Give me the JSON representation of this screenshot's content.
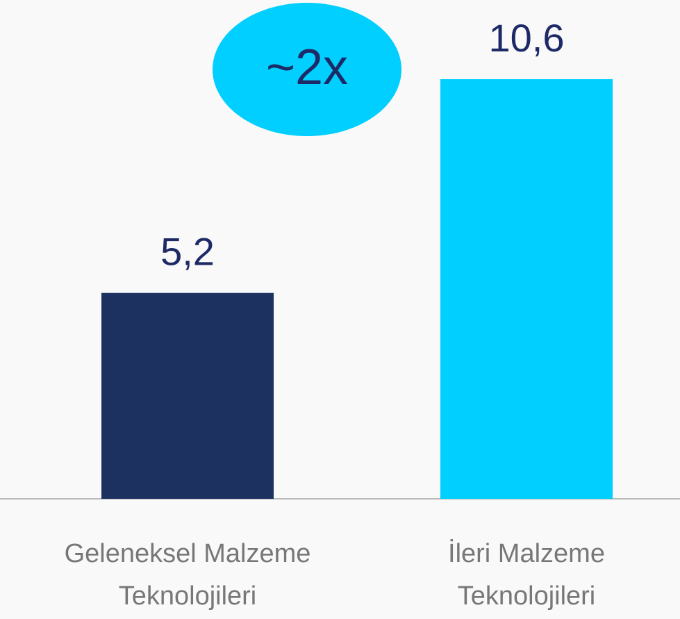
{
  "chart_data": {
    "type": "bar",
    "categories": [
      "Geleneksel Malzeme Teknolojileri",
      "İleri Malzeme Teknolojileri"
    ],
    "values": [
      5.2,
      10.6
    ],
    "value_labels": [
      "5,2",
      "10,6"
    ],
    "colors": [
      "#1c3160",
      "#00cfff"
    ],
    "annotation": "~2x",
    "ylim": [
      0,
      12.6
    ]
  }
}
